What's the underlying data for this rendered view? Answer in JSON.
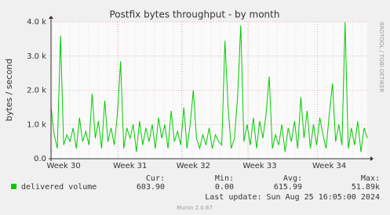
{
  "chart_data": {
    "type": "line",
    "title": "Postfix bytes throughput - by month",
    "y_label": "bytes / second",
    "watermark": "RRDTOOL / TOBI OETIKER",
    "categories": [
      null,
      null,
      null,
      null,
      "Week 30",
      null,
      null,
      null,
      null,
      null,
      null,
      null,
      null,
      null,
      null,
      null,
      null,
      null,
      null,
      null,
      null,
      null,
      null,
      null,
      null,
      "Week 31",
      null,
      null,
      null,
      null,
      null,
      null,
      null,
      null,
      null,
      null,
      null,
      null,
      null,
      null,
      null,
      null,
      null,
      null,
      null,
      "Week 32",
      null,
      null,
      null,
      null,
      null,
      null,
      null,
      null,
      null,
      null,
      null,
      null,
      null,
      null,
      null,
      null,
      null,
      null,
      null,
      null,
      "Week 33",
      null,
      null,
      null,
      null,
      null,
      null,
      null,
      null,
      null,
      null,
      null,
      null,
      null,
      null,
      null,
      null,
      null,
      null,
      null,
      null,
      null,
      "Week 34",
      null,
      null,
      null,
      null,
      null,
      null,
      null,
      null,
      null,
      null,
      null,
      null
    ],
    "series": [
      {
        "name": "delivered volume",
        "color": "#00cc00",
        "values": [
          1500,
          700,
          300,
          3600,
          400,
          700,
          500,
          900,
          300,
          1200,
          500,
          800,
          400,
          1900,
          600,
          1100,
          300,
          1700,
          500,
          900,
          400,
          1300,
          2850,
          300,
          900,
          600,
          1000,
          200,
          1100,
          400,
          900,
          500,
          1000,
          300,
          1200,
          600,
          1000,
          300,
          1400,
          500,
          800,
          400,
          1500,
          300,
          1000,
          2000,
          600,
          300,
          700,
          400,
          900,
          300,
          700,
          500,
          400,
          3450,
          1500,
          300,
          600,
          1800,
          3900,
          500,
          1000,
          400,
          1200,
          300,
          1100,
          600,
          1300,
          2400,
          300,
          700,
          400,
          1000,
          200,
          900,
          500,
          1100,
          300,
          1800,
          600,
          1400,
          300,
          1000,
          400,
          1200,
          700,
          300,
          1300,
          2200,
          500,
          1000,
          400,
          4000,
          300,
          900,
          400,
          1100,
          200,
          900,
          600
        ]
      }
    ],
    "ylim": [
      0,
      4000
    ],
    "yticks": [
      {
        "value": 0,
        "label": "0.0"
      },
      {
        "value": 1000,
        "label": "1.0 k"
      },
      {
        "value": 2000,
        "label": "2.0 k"
      },
      {
        "value": 3000,
        "label": "3.0 k"
      },
      {
        "value": 4000,
        "label": "4.0 k"
      }
    ],
    "grid": true,
    "summary": {
      "columns": [
        "Cur:",
        "Min:",
        "Avg:",
        "Max:"
      ],
      "values": [
        "603.90",
        "0.00",
        "615.99",
        "51.89k"
      ]
    },
    "last_update": "Last update: Sun Aug 25 16:05:00 2024",
    "footer": "Munin 2.0.67"
  }
}
